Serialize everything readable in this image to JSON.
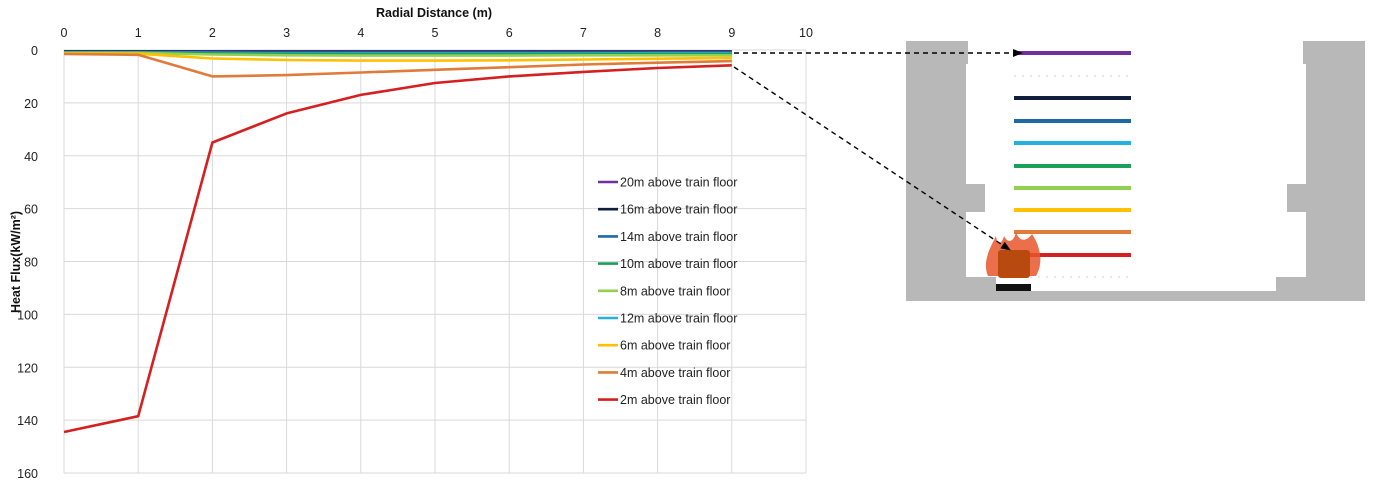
{
  "chart_data": {
    "type": "line",
    "title": "",
    "xlabel": "Radial Distance (m)",
    "ylabel": "Heat Flux(kW/m²)",
    "x_ticks": [
      0,
      1,
      2,
      3,
      4,
      5,
      6,
      7,
      8,
      9,
      10
    ],
    "y_ticks": [
      0,
      20,
      40,
      60,
      80,
      100,
      120,
      140,
      160
    ],
    "xlim": [
      0,
      10
    ],
    "ylim": [
      0,
      160
    ],
    "y_axis_inverted": true,
    "x_axis_position": "top",
    "grid": true,
    "legend_position": "right-middle",
    "x": [
      0,
      1,
      2,
      3,
      4,
      5,
      6,
      7,
      8,
      9
    ],
    "series": [
      {
        "name": "20m above train floor",
        "color": "#7030a0",
        "values": [
          0.5,
          0.5,
          0.5,
          0.5,
          0.5,
          0.5,
          0.5,
          0.5,
          0.5,
          0.5
        ]
      },
      {
        "name": "16m above train floor",
        "color": "#0f1f3d",
        "values": [
          0.6,
          0.6,
          0.7,
          0.7,
          0.7,
          0.7,
          0.7,
          0.7,
          0.7,
          0.7
        ]
      },
      {
        "name": "14m above train floor",
        "color": "#1f6aa5",
        "values": [
          0.8,
          0.8,
          0.9,
          1.0,
          1.0,
          1.0,
          1.0,
          1.0,
          1.0,
          1.0
        ]
      },
      {
        "name": "10m above train floor",
        "color": "#1aa05a",
        "values": [
          1.0,
          1.0,
          1.3,
          1.5,
          1.6,
          1.6,
          1.6,
          1.5,
          1.5,
          1.5
        ]
      },
      {
        "name": "8m above train floor",
        "color": "#92d050",
        "values": [
          1.1,
          1.1,
          1.7,
          2.0,
          2.1,
          2.1,
          2.1,
          2.0,
          2.0,
          2.0
        ]
      },
      {
        "name": "12m above train floor",
        "color": "#25b0e0",
        "values": [
          0.9,
          0.9,
          1.1,
          1.3,
          1.3,
          1.3,
          1.3,
          1.3,
          1.2,
          1.2
        ]
      },
      {
        "name": "6m above train floor",
        "color": "#ffc000",
        "values": [
          1.3,
          1.4,
          3.2,
          3.8,
          4.0,
          4.0,
          3.9,
          3.6,
          3.3,
          3.0
        ]
      },
      {
        "name": "4m above train floor",
        "color": "#e07b39",
        "values": [
          1.5,
          1.8,
          10.0,
          9.5,
          8.5,
          7.5,
          6.5,
          5.5,
          4.8,
          4.2
        ]
      },
      {
        "name": "2m above train floor",
        "color": "#d42020",
        "values": [
          144.5,
          138.5,
          35.0,
          24.0,
          17.0,
          12.5,
          10.0,
          8.3,
          6.8,
          5.8
        ]
      }
    ]
  },
  "diagram": {
    "colors": {
      "wall": "#b8b8b8",
      "fire_glow": "#e8562a",
      "fire_core": "#b84a10",
      "train_base": "#111111"
    },
    "icon": "fire-icon"
  }
}
